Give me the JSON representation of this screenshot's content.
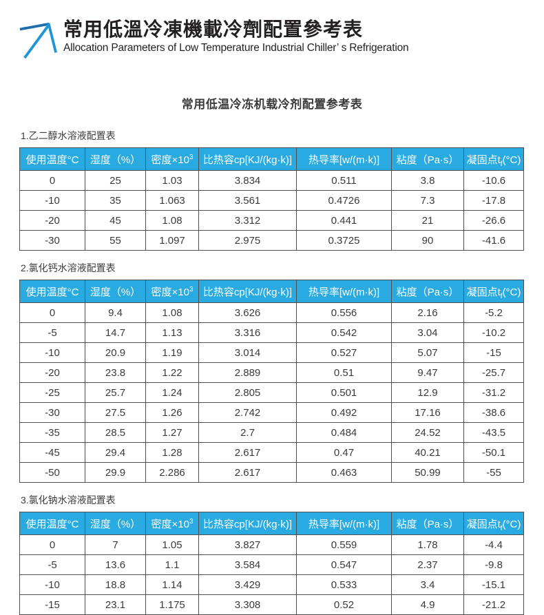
{
  "header": {
    "logo_icon": "up-right-arrow-icon",
    "title_zh": "常用低溫冷凍機載冷劑配置參考表",
    "subtitle_en": "Allocation Parameters of Low Temperature Industrial Chiller’ s Refrigeration"
  },
  "body": {
    "title": "常用低温冷冻机载冷剂配置参考表",
    "columns": [
      {
        "label": "使用温度°C"
      },
      {
        "label": "湿度（%）"
      },
      {
        "label": "密度×10",
        "sup": "3"
      },
      {
        "label": "比热容cp[KJ/(kg·k)]"
      },
      {
        "label": "热导率[w/(m·k)]"
      },
      {
        "label": "粘度（Pa·s）"
      },
      {
        "label": "凝固点t",
        "sub": "f",
        "suffix": "(°C)"
      }
    ],
    "sections": [
      {
        "label": "1.乙二醇水溶液配置表",
        "rows": [
          [
            "0",
            "25",
            "1.03",
            "3.834",
            "0.511",
            "3.8",
            "-10.6"
          ],
          [
            "-10",
            "35",
            "1.063",
            "3.561",
            "0.4726",
            "7.3",
            "-17.8"
          ],
          [
            "-20",
            "45",
            "1.08",
            "3.312",
            "0.441",
            "21",
            "-26.6"
          ],
          [
            "-30",
            "55",
            "1.097",
            "2.975",
            "0.3725",
            "90",
            "-41.6"
          ]
        ]
      },
      {
        "label": "2.氯化钙水溶液配置表",
        "rows": [
          [
            "0",
            "9.4",
            "1.08",
            "3.626",
            "0.556",
            "2.16",
            "-5.2"
          ],
          [
            "-5",
            "14.7",
            "1.13",
            "3.316",
            "0.542",
            "3.04",
            "-10.2"
          ],
          [
            "-10",
            "20.9",
            "1.19",
            "3.014",
            "0.527",
            "5.07",
            "-15"
          ],
          [
            "-20",
            "23.8",
            "1.22",
            "2.889",
            "0.51",
            "9.47",
            "-25.7"
          ],
          [
            "-25",
            "25.7",
            "1.24",
            "2.805",
            "0.501",
            "12.9",
            "-31.2"
          ],
          [
            "-30",
            "27.5",
            "1.26",
            "2.742",
            "0.492",
            "17.16",
            "-38.6"
          ],
          [
            "-35",
            "28.5",
            "1.27",
            "2.7",
            "0.484",
            "24.52",
            "-43.5"
          ],
          [
            "-45",
            "29.4",
            "1.28",
            "2.617",
            "0.47",
            "40.21",
            "-50.1"
          ],
          [
            "-50",
            "29.9",
            "2.286",
            "2.617",
            "0.463",
            "50.99",
            "-55"
          ]
        ]
      },
      {
        "label": "3.氯化钠水溶液配置表",
        "rows": [
          [
            "0",
            "7",
            "1.05",
            "3.827",
            "0.559",
            "1.78",
            "-4.4"
          ],
          [
            "-5",
            "13.6",
            "1.1",
            "3.584",
            "0.547",
            "2.37",
            "-9.8"
          ],
          [
            "-10",
            "18.8",
            "1.14",
            "3.429",
            "0.533",
            "3.4",
            "-15.1"
          ],
          [
            "-15",
            "23.1",
            "1.175",
            "3.308",
            "0.52",
            "4.9",
            "-21.2"
          ]
        ]
      }
    ]
  },
  "colors": {
    "header_blue": "#29abe2",
    "arrow_blue_dark": "#1b6eac",
    "arrow_blue_light": "#2196d6",
    "border_gray": "#4d4d4d",
    "text_dark": "#231f20"
  }
}
